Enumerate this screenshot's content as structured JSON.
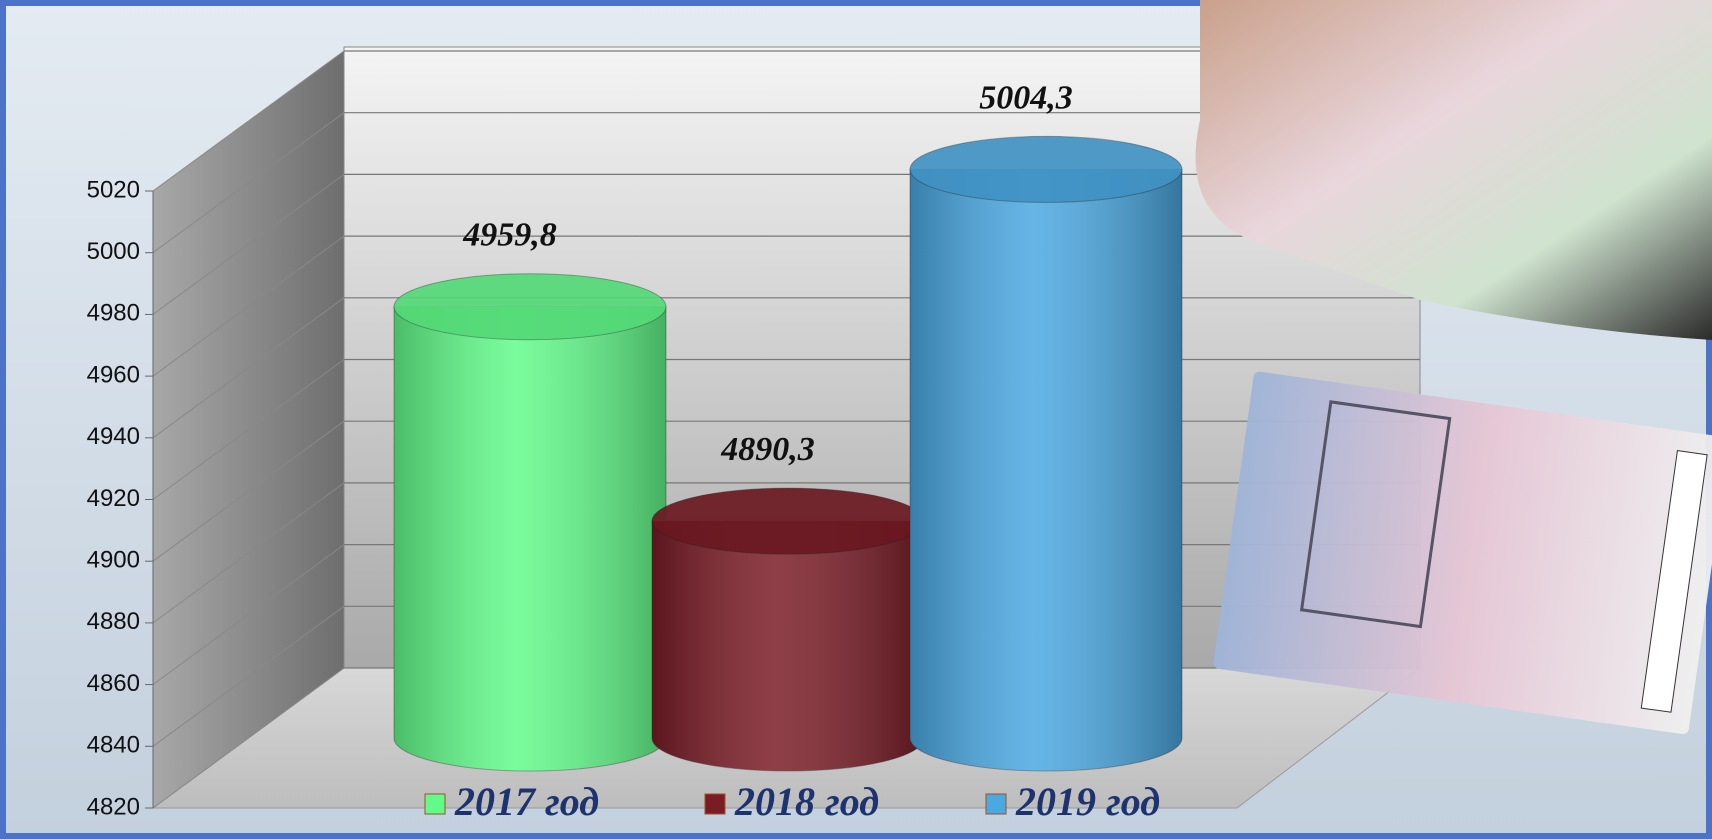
{
  "chart_data": {
    "type": "bar",
    "series": [
      {
        "name": "2017 год",
        "color": "#62fb8a",
        "values": [
          4959.8
        ],
        "value_labels": [
          "4959,8"
        ]
      },
      {
        "name": "2018 год",
        "color": "#7a1c26",
        "values": [
          4890.3
        ],
        "value_labels": [
          "4890,3"
        ]
      },
      {
        "name": "2019 год",
        "color": "#4aa8e2",
        "values": [
          5004.3
        ],
        "value_labels": [
          "5004,3"
        ]
      }
    ],
    "ylim": [
      4820,
      5020
    ],
    "yticks": [
      4820,
      4840,
      4860,
      4880,
      4900,
      4920,
      4940,
      4960,
      4980,
      5000,
      5020
    ],
    "grid": true
  }
}
